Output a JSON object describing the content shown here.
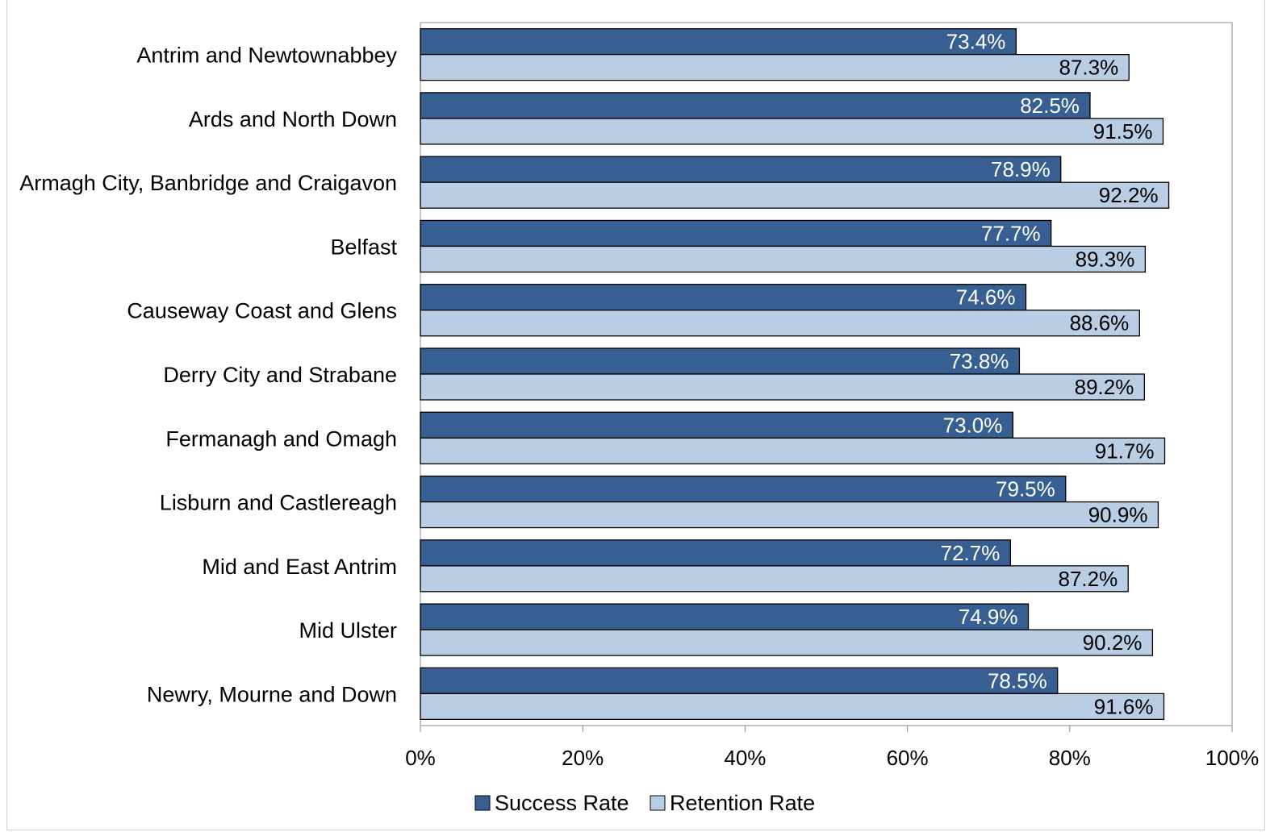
{
  "chart_data": {
    "type": "bar",
    "orientation": "horizontal",
    "categories": [
      "Antrim and Newtownabbey",
      "Ards and North Down",
      "Armagh City, Banbridge and Craigavon",
      "Belfast",
      "Causeway Coast and Glens",
      "Derry City and Strabane",
      "Fermanagh and Omagh",
      "Lisburn and Castlereagh",
      "Mid and East Antrim",
      "Mid Ulster",
      "Newry, Mourne and Down"
    ],
    "series": [
      {
        "name": "Success Rate",
        "color": "#375f91",
        "label_color": "#ffffff",
        "values": [
          73.4,
          82.5,
          78.9,
          77.7,
          74.6,
          73.8,
          73.0,
          79.5,
          72.7,
          74.9,
          78.5
        ],
        "labels": [
          "73.4%",
          "82.5%",
          "78.9%",
          "77.7%",
          "74.6%",
          "73.8%",
          "73.0%",
          "79.5%",
          "72.7%",
          "74.9%",
          "78.5%"
        ]
      },
      {
        "name": "Retention Rate",
        "color": "#b9cde5",
        "label_color": "#000000",
        "values": [
          87.3,
          91.5,
          92.2,
          89.3,
          88.6,
          89.2,
          91.7,
          90.9,
          87.2,
          90.2,
          91.6
        ],
        "labels": [
          "87.3%",
          "91.5%",
          "92.2%",
          "89.3%",
          "88.6%",
          "89.2%",
          "91.7%",
          "90.9%",
          "87.2%",
          "90.2%",
          "91.6%"
        ]
      }
    ],
    "xlim": [
      0,
      100
    ],
    "xticks": [
      "0%",
      "20%",
      "40%",
      "60%",
      "80%",
      "100%"
    ],
    "grid": false,
    "legend_position": "bottom"
  }
}
